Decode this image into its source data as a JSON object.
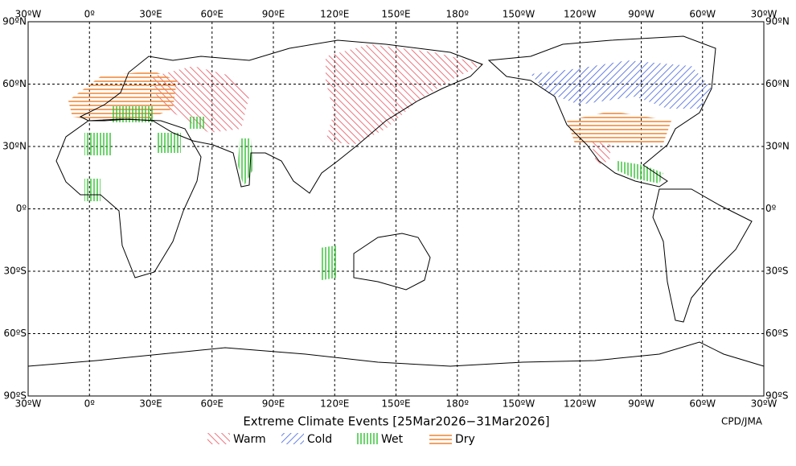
{
  "map": {
    "title": "Extreme Climate Events [25Mar2026−31Mar2026]",
    "credit": "CPD/JMA",
    "lon_labels": [
      "30ºW",
      "0º",
      "30ºE",
      "60ºE",
      "90ºE",
      "120ºE",
      "150ºE",
      "180º",
      "150ºW",
      "120ºW",
      "90ºW",
      "60ºW",
      "30ºW"
    ],
    "lat_labels": [
      "90ºN",
      "60ºN",
      "30ºN",
      "0º",
      "30ºS",
      "60ºS",
      "90ºS"
    ],
    "legend": [
      "Warm",
      "Cold",
      "Wet",
      "Dry"
    ]
  }
}
